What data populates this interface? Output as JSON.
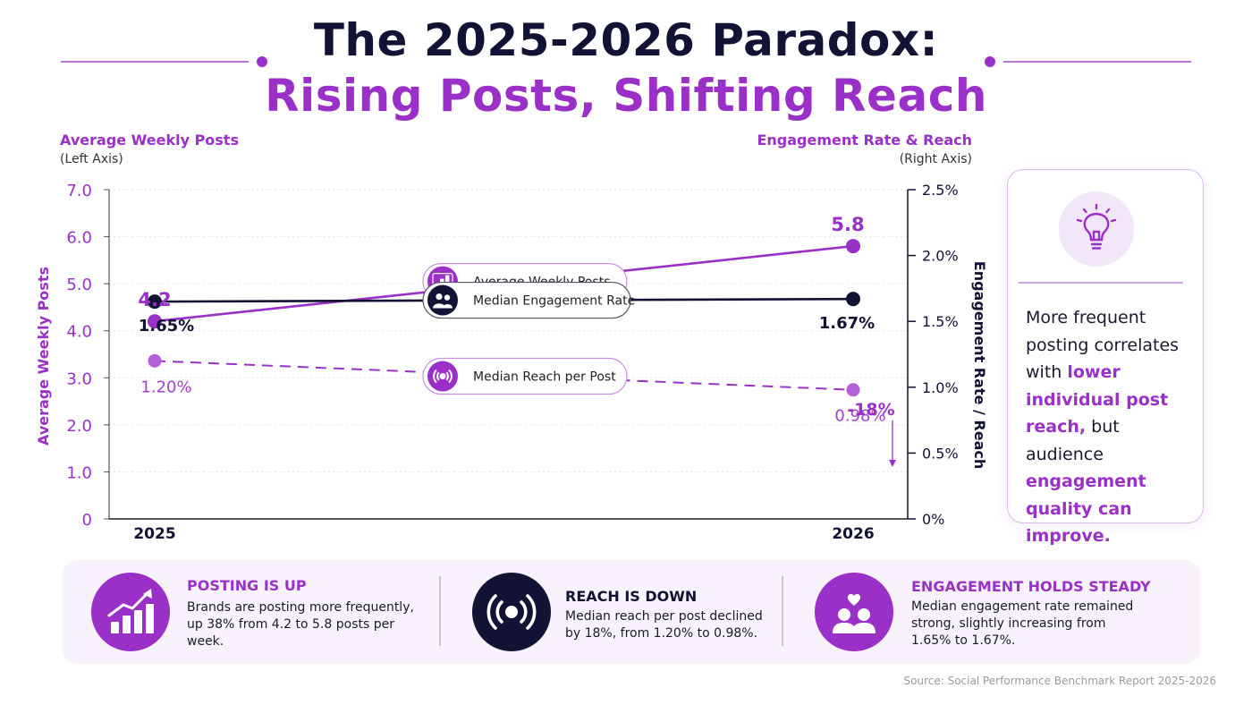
{
  "title": {
    "line1": "The 2025-2026 Paradox:",
    "line2": "Rising Posts, Shifting Reach"
  },
  "axes": {
    "left_title": "Average Weekly Posts",
    "left_sub": "(Left Axis)",
    "right_title": "Engagement Rate & Reach",
    "right_sub": "(Right Axis)",
    "left_vertical_label": "Average Weekly Posts",
    "right_vertical_label": "Engagement Rate / Reach"
  },
  "chart_data": {
    "type": "line",
    "x": [
      "2025",
      "2026"
    ],
    "y_left": {
      "ylim": [
        0,
        7
      ],
      "ticks": [
        "0",
        "1.0",
        "2.0",
        "3.0",
        "4.0",
        "5.0",
        "6.0",
        "7.0"
      ]
    },
    "y_right": {
      "ylim": [
        0,
        2.5
      ],
      "ticks": [
        "0%",
        "0.5%",
        "1.0%",
        "1.5%",
        "2.0%",
        "2.5%"
      ]
    },
    "series": [
      {
        "name": "Average Weekly Posts",
        "axis": "left",
        "values": [
          4.2,
          5.8
        ],
        "labels": [
          "4.2",
          "5.8"
        ],
        "color": "#9b30c8",
        "style": "solid",
        "icon": "bar-chart-icon"
      },
      {
        "name": "Median Engagement Rate",
        "axis": "right",
        "values": [
          1.65,
          1.67
        ],
        "labels": [
          "1.65%",
          "1.67%"
        ],
        "color": "#111234",
        "style": "solid",
        "icon": "people-icon"
      },
      {
        "name": "Median Reach per Post",
        "axis": "right",
        "values": [
          1.2,
          0.98
        ],
        "labels": [
          "1.20%",
          "0.98%"
        ],
        "color": "#9b30c8",
        "style": "dashed",
        "icon": "broadcast-icon"
      }
    ],
    "annotations": [
      {
        "text": "-18%",
        "series": "Median Reach per Post"
      }
    ],
    "grid": true
  },
  "insight": {
    "icon": "lightbulb-icon",
    "parts": [
      {
        "text": "More frequent posting correlates with ",
        "highlight": false
      },
      {
        "text": "lower individual post reach,",
        "highlight": true
      },
      {
        "text": " but audience ",
        "highlight": false
      },
      {
        "text": "engagement quality can improve.",
        "highlight": true
      }
    ]
  },
  "cards": [
    {
      "title": "POSTING IS UP",
      "body": "Brands are posting more frequently, up 38% from 4.2 to 5.8 posts per week.",
      "icon": "growth-chart-icon",
      "title_color": "#9b30c8",
      "icon_bg": "#9b30c8"
    },
    {
      "title": "REACH IS DOWN",
      "body": "Median reach per post declined by 18%, from 1.20% to 0.98%.",
      "icon": "broadcast-icon",
      "title_color": "#111234",
      "icon_bg": "#111234"
    },
    {
      "title": "ENGAGEMENT HOLDS STEADY",
      "body": "Median engagement rate remained strong, slightly increasing from 1.65% to 1.67%.",
      "icon": "people-heart-icon",
      "title_color": "#9b30c8",
      "icon_bg": "#9b30c8"
    }
  ],
  "source": "Source: Social Performance Benchmark Report 2025-2026",
  "colors": {
    "accent": "#9b30c8",
    "dark": "#111234",
    "panel": "#f7f2fb"
  }
}
